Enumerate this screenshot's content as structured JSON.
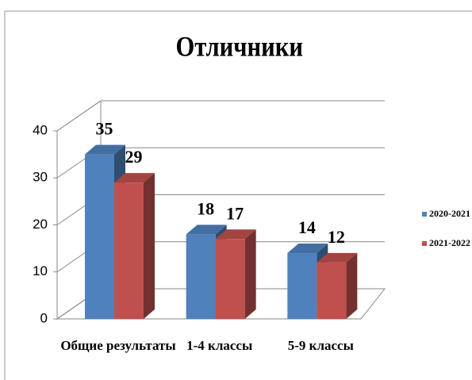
{
  "chart_data": {
    "type": "bar3d",
    "title": "Отличники",
    "categories": [
      "Общие результаты",
      "1-4 классы",
      "5-9 классы"
    ],
    "series": [
      {
        "name": "2020-2021",
        "color": "#4f81bd",
        "values": [
          35,
          18,
          14
        ]
      },
      {
        "name": "2021-2022",
        "color": "#c0504d",
        "values": [
          29,
          17,
          12
        ]
      }
    ],
    "ylim": [
      0,
      40
    ],
    "yticks": [
      0,
      10,
      20,
      30,
      40
    ],
    "grid": true,
    "legend": "right"
  }
}
